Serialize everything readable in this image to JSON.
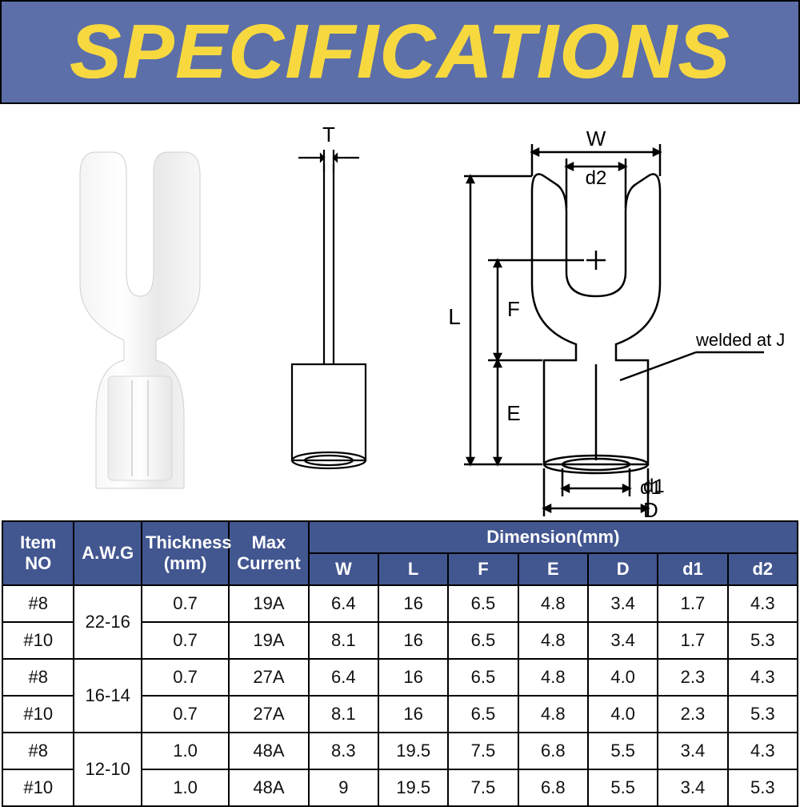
{
  "header": {
    "title": "SPECIFICATIONS"
  },
  "colors": {
    "header_bg": "#5c6fa9",
    "header_text": "#f7d93f",
    "line": "#000000",
    "table_header_bg": "#425690",
    "table_header_text": "#ffffff",
    "border": "#000000",
    "background": "#ffffff"
  },
  "diagram": {
    "type": "technical-diagram",
    "labels": {
      "T": "T",
      "W": "W",
      "d2": "d2",
      "L": "L",
      "F": "F",
      "E": "E",
      "d1": "d1",
      "D": "D"
    },
    "annotation": "welded at Joints",
    "stroke_width": 2.2,
    "font_size_label": 26
  },
  "table": {
    "headers": {
      "item": "Item NO",
      "awg": "A.W.G",
      "thickness": "Thickness (mm)",
      "current": "Max Current",
      "dimension": "Dimension(mm)",
      "sub": [
        "W",
        "L",
        "F",
        "E",
        "D",
        "d1",
        "d2"
      ]
    },
    "awg_groups": [
      "22-16",
      "16-14",
      "12-10"
    ],
    "rows": [
      {
        "item": "#8",
        "thk": "0.7",
        "cur": "19A",
        "W": "6.4",
        "L": "16",
        "F": "6.5",
        "E": "4.8",
        "D": "3.4",
        "d1": "1.7",
        "d2": "4.3"
      },
      {
        "item": "#10",
        "thk": "0.7",
        "cur": "19A",
        "W": "8.1",
        "L": "16",
        "F": "6.5",
        "E": "4.8",
        "D": "3.4",
        "d1": "1.7",
        "d2": "5.3"
      },
      {
        "item": "#8",
        "thk": "0.7",
        "cur": "27A",
        "W": "6.4",
        "L": "16",
        "F": "6.5",
        "E": "4.8",
        "D": "4.0",
        "d1": "2.3",
        "d2": "4.3"
      },
      {
        "item": "#10",
        "thk": "0.7",
        "cur": "27A",
        "W": "8.1",
        "L": "16",
        "F": "6.5",
        "E": "4.8",
        "D": "4.0",
        "d1": "2.3",
        "d2": "5.3"
      },
      {
        "item": "#8",
        "thk": "1.0",
        "cur": "48A",
        "W": "8.3",
        "L": "19.5",
        "F": "7.5",
        "E": "6.8",
        "D": "5.5",
        "d1": "3.4",
        "d2": "4.3"
      },
      {
        "item": "#10",
        "thk": "1.0",
        "cur": "48A",
        "W": "9",
        "L": "19.5",
        "F": "7.5",
        "E": "6.8",
        "D": "5.5",
        "d1": "3.4",
        "d2": "5.3"
      }
    ]
  }
}
